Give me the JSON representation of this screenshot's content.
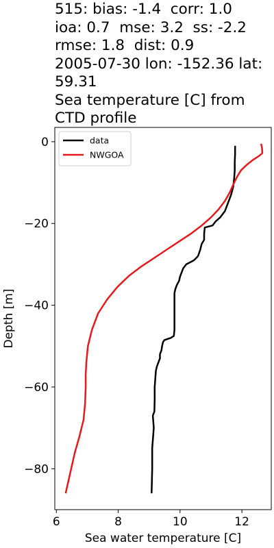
{
  "chart_data": {
    "type": "line",
    "title_lines": [
      "515: bias: -1.4  corr: 1.0",
      "ioa: 0.7  mse: 3.2  ss: -2.2",
      "rmse: 1.8  dist: 0.9",
      "2005-07-30 lon: -152.36 lat:",
      "59.31",
      "Sea temperature [C] from",
      "CTD profile"
    ],
    "xlabel": "Sea water temperature [C]",
    "ylabel": "Depth [m]",
    "xlim": [
      5.95,
      12.95
    ],
    "ylim": [
      -90,
      3.5
    ],
    "xticks": [
      6,
      8,
      10,
      12
    ],
    "yticks": [
      0,
      -20,
      -40,
      -60,
      -80
    ],
    "xtick_labels": [
      "6",
      "8",
      "10",
      "12"
    ],
    "ytick_labels": [
      "0",
      "−20",
      "−40",
      "−60",
      "−80"
    ],
    "grid": false,
    "legend_position": "upper-left",
    "series": [
      {
        "name": "data",
        "color": "#000000",
        "points": [
          [
            11.78,
            -1
          ],
          [
            11.78,
            -3
          ],
          [
            11.77,
            -5
          ],
          [
            11.77,
            -7
          ],
          [
            11.75,
            -9
          ],
          [
            11.72,
            -11
          ],
          [
            11.65,
            -13
          ],
          [
            11.55,
            -15
          ],
          [
            11.45,
            -17
          ],
          [
            11.3,
            -18.5
          ],
          [
            11.15,
            -19.5
          ],
          [
            11.05,
            -20.5
          ],
          [
            10.8,
            -21
          ],
          [
            10.78,
            -22.5
          ],
          [
            10.78,
            -24
          ],
          [
            10.7,
            -25
          ],
          [
            10.65,
            -26.5
          ],
          [
            10.58,
            -28
          ],
          [
            10.45,
            -29
          ],
          [
            10.2,
            -30
          ],
          [
            10.1,
            -31
          ],
          [
            10.05,
            -32
          ],
          [
            10.0,
            -33
          ],
          [
            9.97,
            -34
          ],
          [
            9.9,
            -35
          ],
          [
            9.85,
            -36
          ],
          [
            9.82,
            -37
          ],
          [
            9.82,
            -40
          ],
          [
            9.82,
            -43
          ],
          [
            9.82,
            -46
          ],
          [
            9.8,
            -47.5
          ],
          [
            9.7,
            -48
          ],
          [
            9.5,
            -48.5
          ],
          [
            9.45,
            -49
          ],
          [
            9.42,
            -50
          ],
          [
            9.4,
            -51
          ],
          [
            9.35,
            -52
          ],
          [
            9.35,
            -53
          ],
          [
            9.3,
            -54
          ],
          [
            9.25,
            -55
          ],
          [
            9.22,
            -56
          ],
          [
            9.2,
            -58
          ],
          [
            9.18,
            -60
          ],
          [
            9.18,
            -63
          ],
          [
            9.17,
            -66
          ],
          [
            9.12,
            -67
          ],
          [
            9.15,
            -70
          ],
          [
            9.1,
            -75
          ],
          [
            9.1,
            -80
          ],
          [
            9.08,
            -86
          ]
        ]
      },
      {
        "name": "NWGOA",
        "color": "#e41a1c",
        "points": [
          [
            12.62,
            -0.5
          ],
          [
            12.65,
            -1.5
          ],
          [
            12.66,
            -2.8
          ],
          [
            12.55,
            -3.5
          ],
          [
            12.35,
            -4.5
          ],
          [
            12.15,
            -5.7
          ],
          [
            11.97,
            -7
          ],
          [
            11.85,
            -8.5
          ],
          [
            11.72,
            -10.5
          ],
          [
            11.6,
            -12.5
          ],
          [
            11.45,
            -14.5
          ],
          [
            11.25,
            -16.5
          ],
          [
            11.0,
            -18.5
          ],
          [
            10.7,
            -20.5
          ],
          [
            10.35,
            -22.5
          ],
          [
            9.95,
            -24.5
          ],
          [
            9.55,
            -26.5
          ],
          [
            9.15,
            -28.5
          ],
          [
            8.75,
            -30.5
          ],
          [
            8.35,
            -32.8
          ],
          [
            7.98,
            -35.5
          ],
          [
            7.65,
            -38.5
          ],
          [
            7.35,
            -42
          ],
          [
            7.15,
            -46
          ],
          [
            7.02,
            -50
          ],
          [
            6.97,
            -54
          ],
          [
            6.95,
            -57
          ],
          [
            6.95,
            -60
          ],
          [
            6.93,
            -64
          ],
          [
            6.88,
            -68
          ],
          [
            6.75,
            -72
          ],
          [
            6.6,
            -76
          ],
          [
            6.48,
            -80
          ],
          [
            6.36,
            -84
          ],
          [
            6.3,
            -86
          ]
        ]
      }
    ]
  }
}
